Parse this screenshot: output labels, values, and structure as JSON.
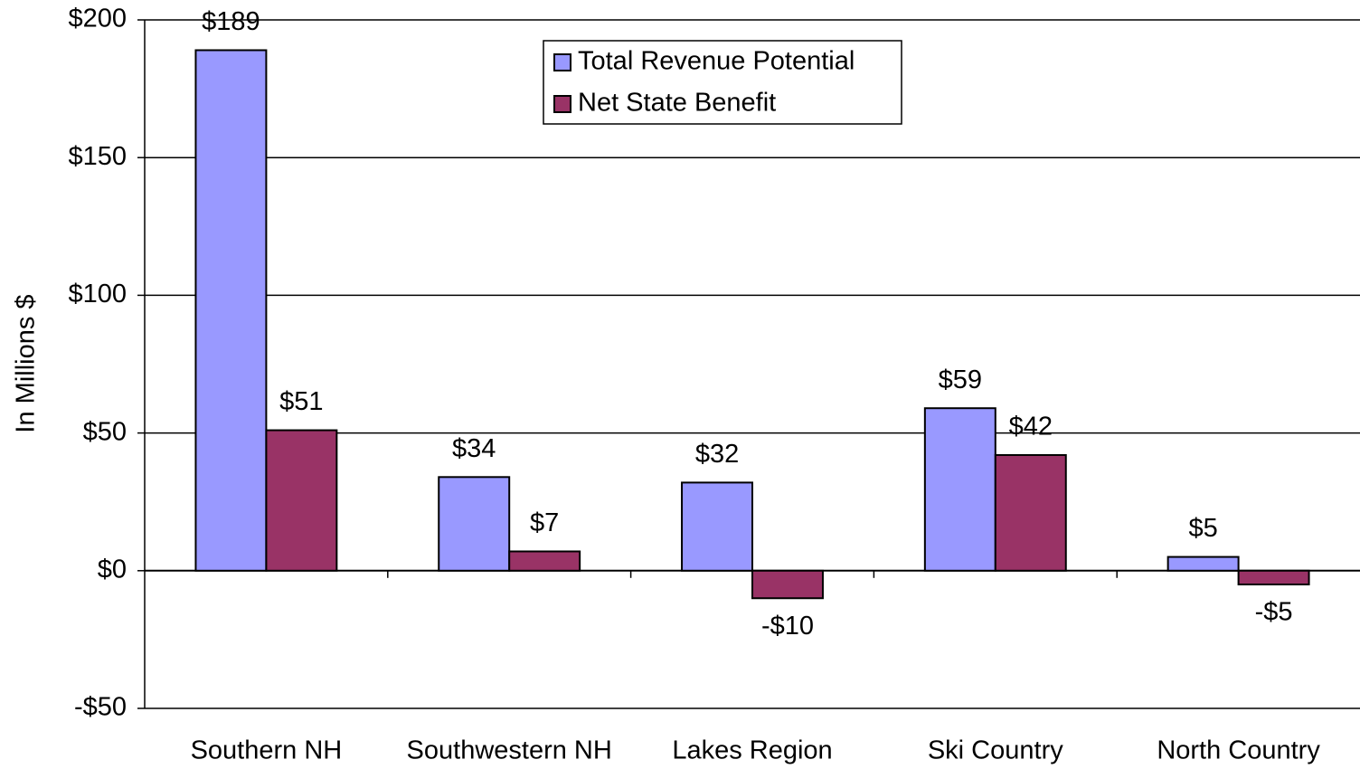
{
  "chart_data": {
    "type": "bar",
    "y_label": "In Millions $",
    "categories": [
      "Southern NH",
      "Southwestern NH",
      "Lakes Region",
      "Ski Country",
      "North Country"
    ],
    "series": [
      {
        "name": "Total Revenue Potential",
        "color": "#9999ff",
        "values": [
          189,
          34,
          32,
          59,
          5
        ],
        "value_labels": [
          "$189",
          "$34",
          "$32",
          "$59",
          "$5"
        ]
      },
      {
        "name": "Net State Benefit",
        "color": "#993366",
        "values": [
          51,
          7,
          -10,
          42,
          -5
        ],
        "value_labels": [
          "$51",
          "$7",
          "-$10",
          "$42",
          "-$5"
        ]
      }
    ],
    "ylim": [
      -50,
      200
    ],
    "yticks": [
      {
        "value": -50,
        "label": "-$50"
      },
      {
        "value": 0,
        "label": "$0"
      },
      {
        "value": 50,
        "label": "$50"
      },
      {
        "value": 100,
        "label": "$100"
      },
      {
        "value": 150,
        "label": "$150"
      },
      {
        "value": 200,
        "label": "$200"
      }
    ],
    "grid": true,
    "legend": "top"
  }
}
